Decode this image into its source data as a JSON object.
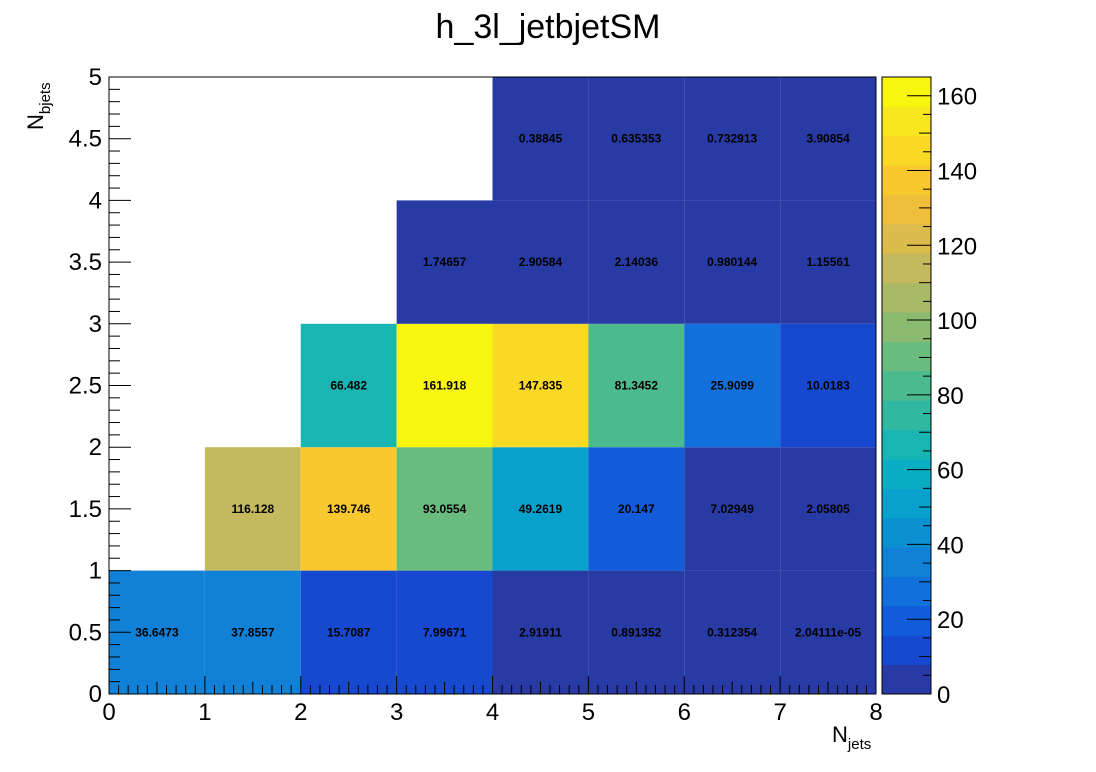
{
  "chart_data": {
    "type": "heatmap",
    "title": "h_3l_jetbjetSM",
    "xlabel": {
      "main": "N",
      "sub": "jets"
    },
    "ylabel": {
      "main": "N",
      "sub": "bjets"
    },
    "xlim": [
      0,
      8
    ],
    "ylim": [
      0,
      5
    ],
    "x_bin_edges": [
      0,
      1,
      2,
      3,
      4,
      5,
      6,
      7,
      8
    ],
    "y_bin_edges": [
      0,
      1,
      2,
      3,
      4,
      5
    ],
    "x_ticks": [
      0,
      1,
      2,
      3,
      4,
      5,
      6,
      7,
      8
    ],
    "y_ticks": [
      "0",
      "0.5",
      "1",
      "1.5",
      "2",
      "2.5",
      "3",
      "3.5",
      "4",
      "4.5",
      "5"
    ],
    "z_ticks": [
      "0",
      "20",
      "40",
      "60",
      "80",
      "100",
      "120",
      "140",
      "160"
    ],
    "z_range": [
      0,
      165
    ],
    "colormap": "parula",
    "cells": [
      {
        "x": 0,
        "y": 0,
        "value": 36.6473,
        "label": "36.6473"
      },
      {
        "x": 1,
        "y": 0,
        "value": 37.8557,
        "label": "37.8557"
      },
      {
        "x": 2,
        "y": 0,
        "value": 15.7087,
        "label": "15.7087"
      },
      {
        "x": 3,
        "y": 0,
        "value": 7.99671,
        "label": "7.99671"
      },
      {
        "x": 4,
        "y": 0,
        "value": 2.91911,
        "label": "2.91911"
      },
      {
        "x": 5,
        "y": 0,
        "value": 0.891352,
        "label": "0.891352"
      },
      {
        "x": 6,
        "y": 0,
        "value": 0.312354,
        "label": "0.312354"
      },
      {
        "x": 7,
        "y": 0,
        "value": 2.04111e-05,
        "label": "2.04111e-05"
      },
      {
        "x": 1,
        "y": 1,
        "value": 116.128,
        "label": "116.128"
      },
      {
        "x": 2,
        "y": 1,
        "value": 139.746,
        "label": "139.746"
      },
      {
        "x": 3,
        "y": 1,
        "value": 93.0554,
        "label": "93.0554"
      },
      {
        "x": 4,
        "y": 1,
        "value": 49.2619,
        "label": "49.2619"
      },
      {
        "x": 5,
        "y": 1,
        "value": 20.147,
        "label": "20.147"
      },
      {
        "x": 6,
        "y": 1,
        "value": 7.02949,
        "label": "7.02949"
      },
      {
        "x": 7,
        "y": 1,
        "value": 2.05805,
        "label": "2.05805"
      },
      {
        "x": 2,
        "y": 2,
        "value": 66.482,
        "label": "66.482"
      },
      {
        "x": 3,
        "y": 2,
        "value": 161.918,
        "label": "161.918"
      },
      {
        "x": 4,
        "y": 2,
        "value": 147.835,
        "label": "147.835"
      },
      {
        "x": 5,
        "y": 2,
        "value": 81.3452,
        "label": "81.3452"
      },
      {
        "x": 6,
        "y": 2,
        "value": 25.9099,
        "label": "25.9099"
      },
      {
        "x": 7,
        "y": 2,
        "value": 10.0183,
        "label": "10.0183"
      },
      {
        "x": 3,
        "y": 3,
        "value": 1.74657,
        "label": "1.74657"
      },
      {
        "x": 4,
        "y": 3,
        "value": 2.90584,
        "label": "2.90584"
      },
      {
        "x": 5,
        "y": 3,
        "value": 2.14036,
        "label": "2.14036"
      },
      {
        "x": 6,
        "y": 3,
        "value": 0.980144,
        "label": "0.980144"
      },
      {
        "x": 7,
        "y": 3,
        "value": 1.15561,
        "label": "1.15561"
      },
      {
        "x": 4,
        "y": 4,
        "value": 0.38845,
        "label": "0.38845"
      },
      {
        "x": 5,
        "y": 4,
        "value": 0.635353,
        "label": "0.635353"
      },
      {
        "x": 6,
        "y": 4,
        "value": 0.732913,
        "label": "0.732913"
      },
      {
        "x": 7,
        "y": 4,
        "value": 3.90854,
        "label": "3.90854"
      }
    ],
    "palette": [
      "#283ba4",
      "#1649cf",
      "#125bdb",
      "#1270dc",
      "#1081d7",
      "#0c90d2",
      "#08a0cc",
      "#0aaec2",
      "#19b5b3",
      "#31b8a1",
      "#4cba8f",
      "#6abb7e",
      "#8abb6f",
      "#a9b965",
      "#c5b95e",
      "#dcbb4d",
      "#efbf3b",
      "#f9c82f",
      "#fad925",
      "#f8e61e",
      "#f8f50f"
    ]
  }
}
